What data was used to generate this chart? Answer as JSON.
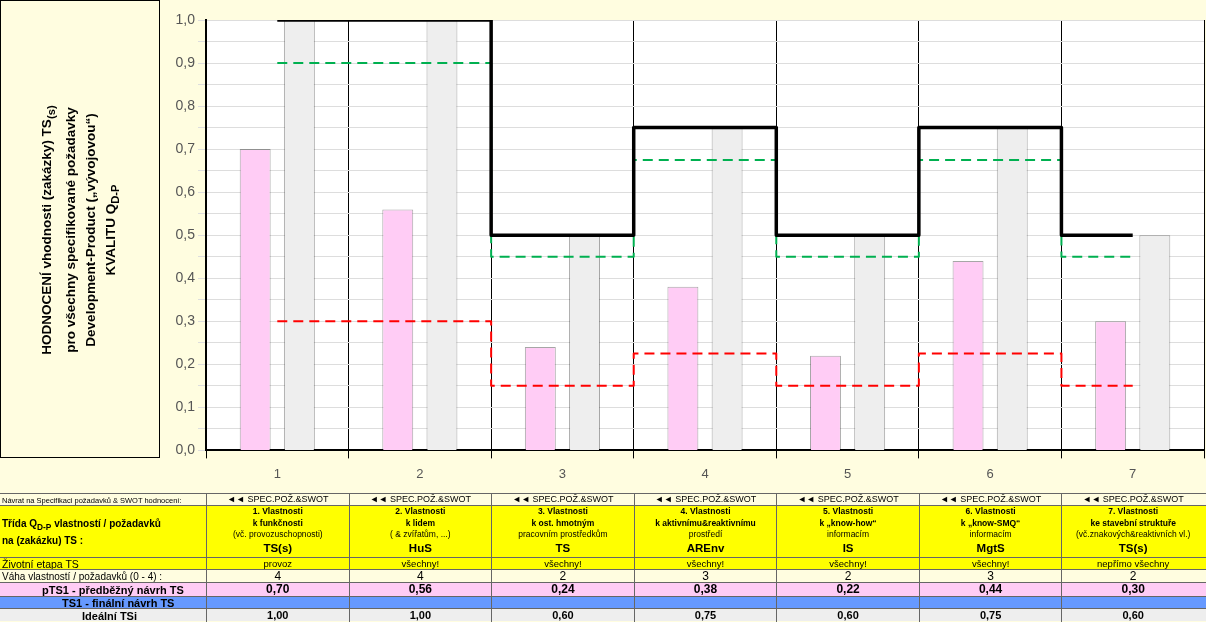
{
  "chart_data": {
    "type": "bar",
    "categories": [
      "1",
      "2",
      "3",
      "4",
      "5",
      "6",
      "7"
    ],
    "ylabel": "HODNOCENÍ  vhodnosti  (zakázky)  TS$_{(s)}$\npro všechny specifikované požadavky\nDevelopment-Product („vývojovou“)\nKVALITU  Q$_{D-P}$",
    "ylim": [
      0,
      1
    ],
    "yticks": [
      {
        "value": 0,
        "label": "0,0"
      },
      {
        "value": 0.05,
        "label": null
      },
      {
        "value": 0.1,
        "label": "0,1"
      },
      {
        "value": 0.15,
        "label": null
      },
      {
        "value": 0.2,
        "label": "0,2"
      },
      {
        "value": 0.25,
        "label": null
      },
      {
        "value": 0.3,
        "label": "0,3"
      },
      {
        "value": 0.35,
        "label": null
      },
      {
        "value": 0.4,
        "label": "0,4"
      },
      {
        "value": 0.45,
        "label": null
      },
      {
        "value": 0.5,
        "label": "0,5"
      },
      {
        "value": 0.55,
        "label": null
      },
      {
        "value": 0.6,
        "label": "0,6"
      },
      {
        "value": 0.65,
        "label": null
      },
      {
        "value": 0.7,
        "label": "0,7"
      },
      {
        "value": 0.75,
        "label": null
      },
      {
        "value": 0.8,
        "label": "0,8"
      },
      {
        "value": 0.85,
        "label": null
      },
      {
        "value": 0.9,
        "label": "0,9"
      },
      {
        "value": 0.95,
        "label": null
      },
      {
        "value": 1,
        "label": "1,0"
      }
    ],
    "grid": true,
    "marker": "none",
    "series": [
      {
        "color": "#ffccf5",
        "values": [
          0.7,
          0.56,
          0.24,
          0.38,
          0.22,
          0.44,
          0.3
        ],
        "value_labels": [
          "0,70",
          "0,56",
          "0,24",
          "0,38",
          "0,22",
          "0,44",
          "0,30"
        ]
      },
      {
        "color": "#eeeeee",
        "values": [
          1,
          1,
          0.5,
          0.75,
          0.5,
          0.75,
          0.5
        ]
      },
      {
        "type": "step",
        "color": "#000000",
        "line_style": "solid",
        "values": [
          1,
          1,
          0.5,
          0.75,
          0.5,
          0.75,
          0.5
        ]
      },
      {
        "type": "step",
        "color": "#00b050",
        "line_style": "dashed",
        "values": [
          0.9,
          0.9,
          0.45,
          0.675,
          0.45,
          0.675,
          0.45
        ]
      },
      {
        "type": "step",
        "color": "#ff0000",
        "line_style": "dashed",
        "values": [
          0.3,
          0.3,
          0.15,
          0.225,
          0.15,
          0.225,
          0.15
        ]
      }
    ],
    "annotations": [
      "Návrat na Specifikaci požadavků & SWOT hodnocení:",
      "◄◄ SPEC.POŽ.&SWOT",
      "◄◄ SPEC.POŽ.&SWOT",
      "◄◄ SPEC.POŽ.&SWOT",
      "◄◄ SPEC.POŽ.&SWOT",
      "◄◄ SPEC.POŽ.&SWOT",
      "◄◄ SPEC.POŽ.&SWOT",
      "◄◄ SPEC.POŽ.&SWOT",
      "Třída Q$_{D-P}$ vlastností / požadavků\nna (zakázku) TS :",
      "1. Vlastnosti\nk funkčnosti\n(vč. provozuschopnosti)\nTS(s)",
      "2. Vlastnosti\nk lidem\n( & zvířatům, ...)\nHuS",
      "3. Vlastnosti\nk ost. hmotným\npracovním prostředkům\nTS",
      "4. Vlastnosti\nk aktivnímu&reaktivnímu\nprostředí\nAREnv",
      "5. Vlastnosti\nk „know-how“\ninformacím\nIS",
      "6. Vlastnosti\nk „know-SMQ“\ninformacím\nMgtS",
      "7. Vlastnosti\nke stavební struktuře\n(vč.znakových&reaktivních vl.)\nTS(s)",
      "Životní etapa TS",
      "provoz",
      "všechny!",
      "všechny!",
      "všechny!",
      "všechny!",
      "všechny!",
      "nepřímo všechny",
      "Váha vlastností / požadavků  (0 - 4) :",
      "4",
      "4",
      "2",
      "3",
      "2",
      "3",
      "2",
      "pTS1 - předběžný návrh TS",
      "TS1 - finální návrh TS",
      "Ideální TSi",
      "1,00",
      "1,00",
      "0,60",
      "0,75",
      "0,60",
      "0,75",
      "0,60"
    ]
  }
}
